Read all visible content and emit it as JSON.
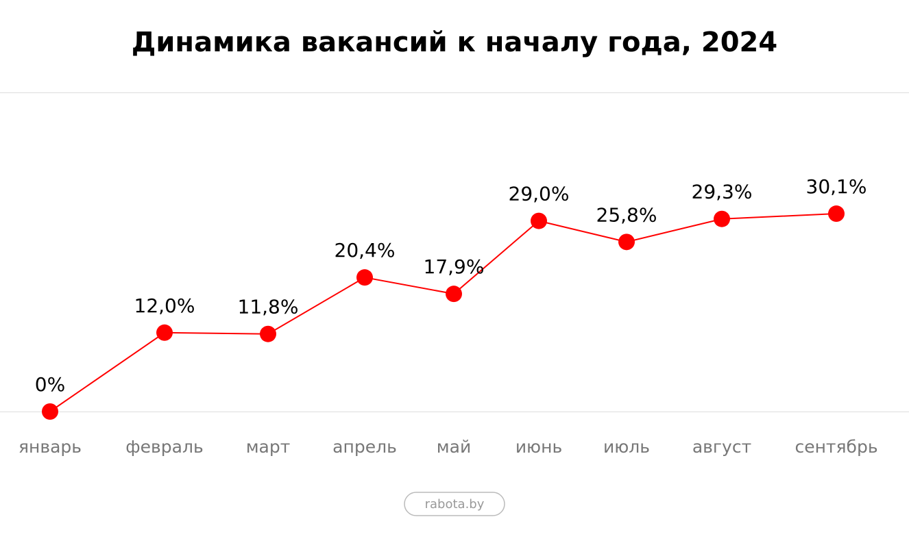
{
  "chart_data": {
    "type": "line",
    "title": "Динамика вакансий к началу года, 2024",
    "categories": [
      "январь",
      "февраль",
      "март",
      "апрель",
      "май",
      "июнь",
      "июль",
      "август",
      "сентябрь"
    ],
    "series": [
      {
        "color": "#ff0000",
        "values": [
          0,
          12.0,
          11.8,
          20.4,
          17.9,
          29.0,
          25.8,
          29.3,
          30.1
        ],
        "value_labels": [
          "0%",
          "12,0%",
          "11,8%",
          "20,4%",
          "17,9%",
          "29,0%",
          "25,8%",
          "29,3%",
          "30,1%"
        ]
      }
    ],
    "source": "rabota.by"
  }
}
